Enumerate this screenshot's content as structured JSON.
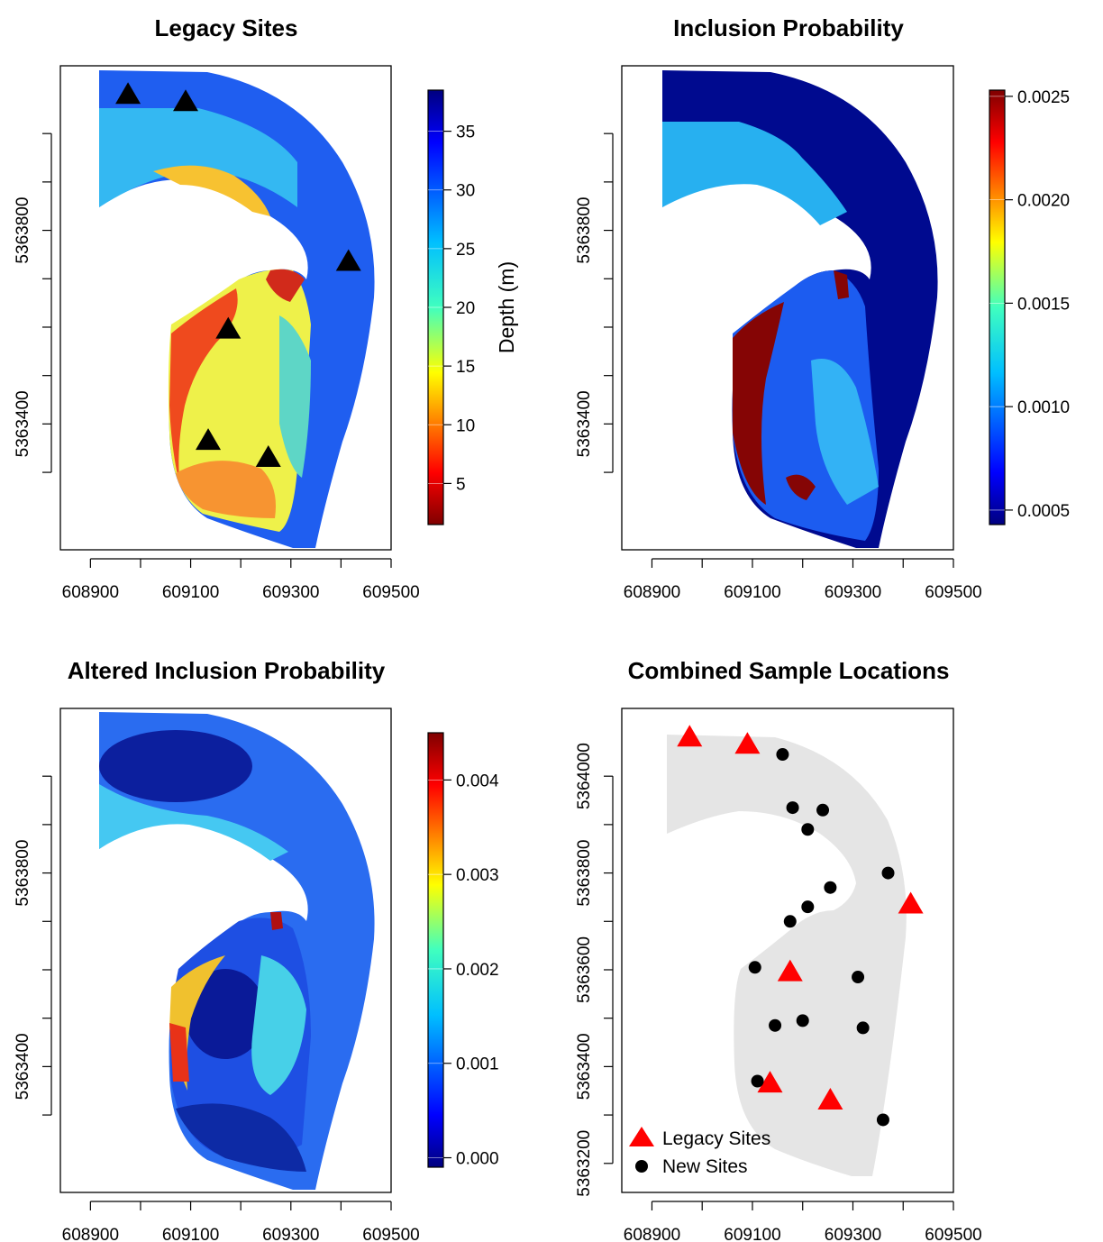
{
  "chart_data": [
    {
      "type": "heatmap",
      "title": "Legacy Sites",
      "legend_label": "Depth (m)",
      "colorbar_ticks": [
        "5",
        "10",
        "15",
        "20",
        "25",
        "30",
        "35"
      ],
      "colorbar_range": [
        1.5,
        38.5
      ],
      "palette": "jet-reversed",
      "x_ticks": [
        "608900",
        "609100",
        "609300",
        "609500"
      ],
      "y_ticks": [
        "5363400",
        "5363800"
      ],
      "xlim": [
        608840,
        609500
      ],
      "ylim": [
        5363140,
        5364140
      ],
      "markers": {
        "shape": "triangle",
        "color": "#000000",
        "points": [
          {
            "x": 608975,
            "y": 5364080
          },
          {
            "x": 609090,
            "y": 5364065
          },
          {
            "x": 609415,
            "y": 5363735
          },
          {
            "x": 609175,
            "y": 5363595
          },
          {
            "x": 609135,
            "y": 5363365
          },
          {
            "x": 609255,
            "y": 5363330
          }
        ]
      }
    },
    {
      "type": "heatmap",
      "title": "Inclusion Probability",
      "colorbar_ticks": [
        "0.0005",
        "0.0010",
        "0.0015",
        "0.0020",
        "0.0025"
      ],
      "colorbar_range": [
        0.00043,
        0.00253
      ],
      "palette": "jet",
      "x_ticks": [
        "608900",
        "609100",
        "609300",
        "609500"
      ],
      "y_ticks": [
        "5363400",
        "5363800"
      ],
      "xlim": [
        608840,
        609500
      ],
      "ylim": [
        5363140,
        5364140
      ]
    },
    {
      "type": "heatmap",
      "title": "Altered Inclusion Probability",
      "colorbar_ticks": [
        "0.000",
        "0.001",
        "0.002",
        "0.003",
        "0.004"
      ],
      "colorbar_range": [
        -0.0001,
        0.0045
      ],
      "palette": "jet",
      "x_ticks": [
        "608900",
        "609100",
        "609300",
        "609500"
      ],
      "y_ticks": [
        "5363400",
        "5363800"
      ],
      "xlim": [
        608840,
        609500
      ],
      "ylim": [
        5363140,
        5364140
      ]
    },
    {
      "type": "scatter",
      "title": "Combined Sample Locations",
      "x_ticks": [
        "608900",
        "609100",
        "609300",
        "609500"
      ],
      "y_ticks": [
        "5363200",
        "5363400",
        "5363600",
        "5363800",
        "5364000"
      ],
      "xlim": [
        608840,
        609500
      ],
      "ylim": [
        5363140,
        5364140
      ],
      "legend_position": "bottom-left",
      "series": [
        {
          "name": "Legacy Sites",
          "marker": "triangle",
          "color": "#ff0000",
          "points": [
            {
              "x": 608975,
              "y": 5364080
            },
            {
              "x": 609090,
              "y": 5364065
            },
            {
              "x": 609415,
              "y": 5363735
            },
            {
              "x": 609175,
              "y": 5363595
            },
            {
              "x": 609135,
              "y": 5363365
            },
            {
              "x": 609255,
              "y": 5363330
            }
          ]
        },
        {
          "name": "New Sites",
          "marker": "circle",
          "color": "#000000",
          "points": [
            {
              "x": 609160,
              "y": 5364045
            },
            {
              "x": 609180,
              "y": 5363935
            },
            {
              "x": 609240,
              "y": 5363930
            },
            {
              "x": 609210,
              "y": 5363890
            },
            {
              "x": 609370,
              "y": 5363800
            },
            {
              "x": 609255,
              "y": 5363770
            },
            {
              "x": 609210,
              "y": 5363730
            },
            {
              "x": 609175,
              "y": 5363700
            },
            {
              "x": 609105,
              "y": 5363605
            },
            {
              "x": 609310,
              "y": 5363585
            },
            {
              "x": 609200,
              "y": 5363495
            },
            {
              "x": 609145,
              "y": 5363485
            },
            {
              "x": 609320,
              "y": 5363480
            },
            {
              "x": 609110,
              "y": 5363370
            },
            {
              "x": 609360,
              "y": 5363290
            }
          ]
        }
      ]
    }
  ]
}
